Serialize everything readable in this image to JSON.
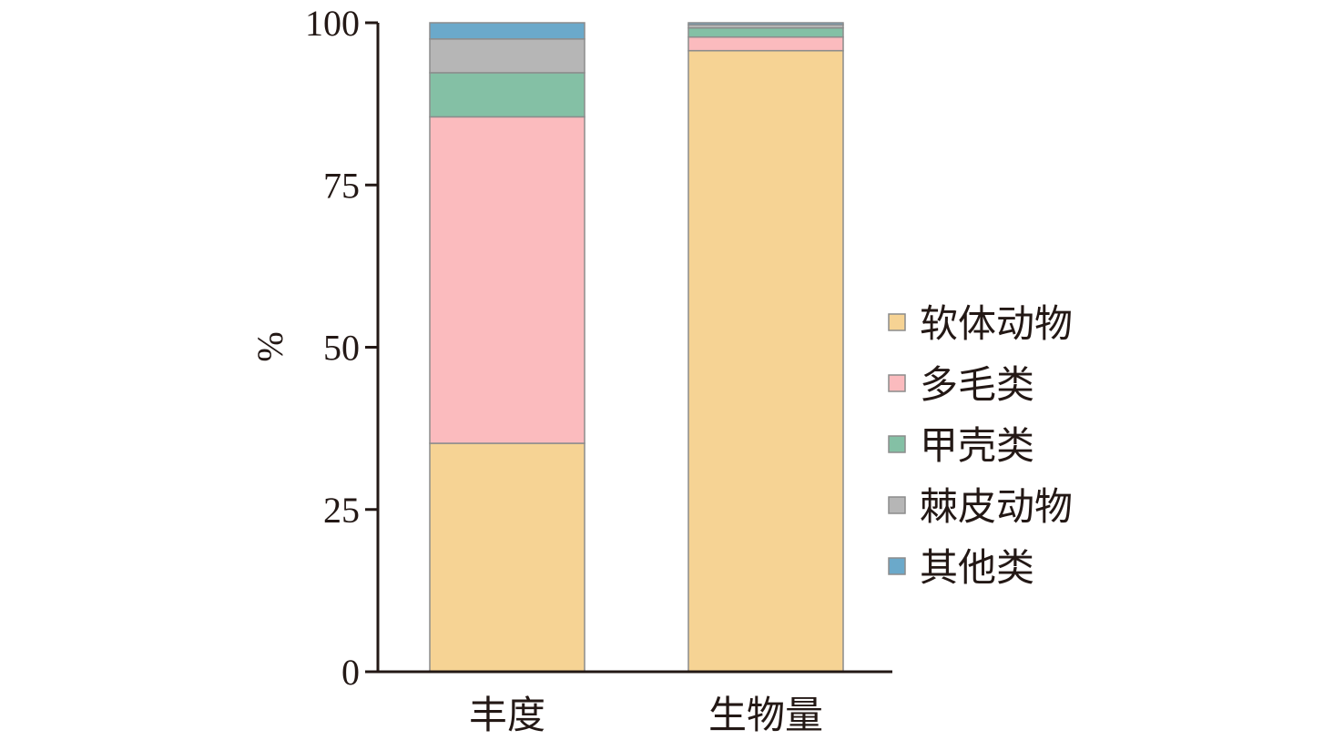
{
  "chart_data": {
    "type": "bar",
    "stacked": true,
    "categories": [
      "丰度",
      "生物量"
    ],
    "series": [
      {
        "name": "软体动物",
        "color": "#F6D394",
        "values": [
          35.2,
          95.7
        ]
      },
      {
        "name": "多毛类",
        "color": "#FBBBBE",
        "values": [
          50.3,
          2.1
        ]
      },
      {
        "name": "甲壳类",
        "color": "#84C0A5",
        "values": [
          6.8,
          1.4
        ]
      },
      {
        "name": "棘皮动物",
        "color": "#B6B6B6",
        "values": [
          5.2,
          0.5
        ]
      },
      {
        "name": "其他类",
        "color": "#6BA9CA",
        "values": [
          2.5,
          0.3
        ]
      }
    ],
    "ylabel": "%",
    "ylim": [
      0,
      100
    ],
    "yticks": [
      0,
      25,
      50,
      75,
      100
    ],
    "ytick_labels": [
      "0",
      "25",
      "50",
      "75",
      "100"
    ],
    "legend": "right"
  }
}
